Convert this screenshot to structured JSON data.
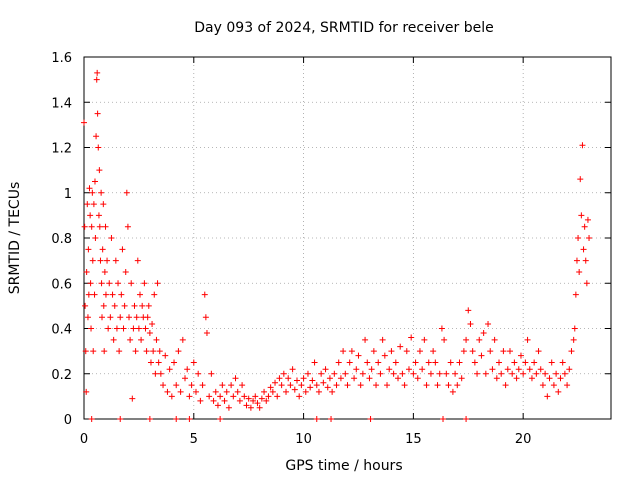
{
  "chart_data": {
    "type": "scatter",
    "title": "Day 093 of 2024, SRMTID for receiver bele",
    "xlabel": "GPS time / hours",
    "ylabel": "SRMTID / TECUs",
    "xlim": [
      0,
      24
    ],
    "ylim": [
      0,
      1.6
    ],
    "xticks": [
      0,
      5,
      10,
      15,
      20
    ],
    "xtick_labels": [
      "0",
      "5",
      "10",
      "15",
      "20"
    ],
    "yticks": [
      0,
      0.2,
      0.4,
      0.6,
      0.8,
      1,
      1.2,
      1.4,
      1.6
    ],
    "ytick_labels": [
      "0",
      "0.2",
      "0.4",
      "0.6",
      "0.8",
      "1",
      "1.2",
      "1.4",
      "1.6"
    ],
    "grid": true,
    "marker": "+",
    "color": "#ff0000",
    "series": [
      {
        "name": "SRMTID",
        "points": [
          [
            0.0,
            1.31
          ],
          [
            0.03,
            0.85
          ],
          [
            0.05,
            0.5
          ],
          [
            0.08,
            0.3
          ],
          [
            0.1,
            0.12
          ],
          [
            0.12,
            0.65
          ],
          [
            0.15,
            0.95
          ],
          [
            0.18,
            0.45
          ],
          [
            0.2,
            0.75
          ],
          [
            0.22,
            0.55
          ],
          [
            0.25,
            1.02
          ],
          [
            0.28,
            0.9
          ],
          [
            0.3,
            0.6
          ],
          [
            0.32,
            0.4
          ],
          [
            0.35,
            0.85
          ],
          [
            0.38,
            1.0
          ],
          [
            0.4,
            0.7
          ],
          [
            0.42,
            0.3
          ],
          [
            0.45,
            0.95
          ],
          [
            0.48,
            0.55
          ],
          [
            0.5,
            1.05
          ],
          [
            0.52,
            0.8
          ],
          [
            0.55,
            1.25
          ],
          [
            0.58,
            1.5
          ],
          [
            0.6,
            1.53
          ],
          [
            0.62,
            1.35
          ],
          [
            0.65,
            1.2
          ],
          [
            0.68,
            0.9
          ],
          [
            0.7,
            1.1
          ],
          [
            0.72,
            0.85
          ],
          [
            0.75,
            0.7
          ],
          [
            0.78,
            1.0
          ],
          [
            0.8,
            0.6
          ],
          [
            0.82,
            0.45
          ],
          [
            0.85,
            0.75
          ],
          [
            0.88,
            0.95
          ],
          [
            0.9,
            0.5
          ],
          [
            0.92,
            0.3
          ],
          [
            0.95,
            0.65
          ],
          [
            0.98,
            0.85
          ],
          [
            1.0,
            0.55
          ],
          [
            1.05,
            0.7
          ],
          [
            1.1,
            0.4
          ],
          [
            1.15,
            0.6
          ],
          [
            1.2,
            0.45
          ],
          [
            1.25,
            0.8
          ],
          [
            1.3,
            0.55
          ],
          [
            1.35,
            0.35
          ],
          [
            1.4,
            0.5
          ],
          [
            1.45,
            0.7
          ],
          [
            1.5,
            0.4
          ],
          [
            1.55,
            0.6
          ],
          [
            1.6,
            0.3
          ],
          [
            1.65,
            0.45
          ],
          [
            1.7,
            0.55
          ],
          [
            1.75,
            0.75
          ],
          [
            1.8,
            0.4
          ],
          [
            1.85,
            0.5
          ],
          [
            1.9,
            0.65
          ],
          [
            1.95,
            1.0
          ],
          [
            2.0,
            0.85
          ],
          [
            2.05,
            0.45
          ],
          [
            2.1,
            0.35
          ],
          [
            2.15,
            0.6
          ],
          [
            2.2,
            0.09
          ],
          [
            2.25,
            0.4
          ],
          [
            2.3,
            0.5
          ],
          [
            2.35,
            0.3
          ],
          [
            2.4,
            0.45
          ],
          [
            2.45,
            0.7
          ],
          [
            2.5,
            0.4
          ],
          [
            2.55,
            0.55
          ],
          [
            2.6,
            0.35
          ],
          [
            2.65,
            0.5
          ],
          [
            2.7,
            0.45
          ],
          [
            2.75,
            0.6
          ],
          [
            2.8,
            0.4
          ],
          [
            2.85,
            0.3
          ],
          [
            2.9,
            0.45
          ],
          [
            2.95,
            0.5
          ],
          [
            3.0,
            0.38
          ],
          [
            3.05,
            0.25
          ],
          [
            3.1,
            0.42
          ],
          [
            3.15,
            0.3
          ],
          [
            3.2,
            0.55
          ],
          [
            3.25,
            0.2
          ],
          [
            3.3,
            0.35
          ],
          [
            3.35,
            0.6
          ],
          [
            3.4,
            0.25
          ],
          [
            3.45,
            0.3
          ],
          [
            3.5,
            0.2
          ],
          [
            3.6,
            0.15
          ],
          [
            3.7,
            0.28
          ],
          [
            3.8,
            0.12
          ],
          [
            3.9,
            0.22
          ],
          [
            4.0,
            0.1
          ],
          [
            4.1,
            0.25
          ],
          [
            4.2,
            0.15
          ],
          [
            4.3,
            0.3
          ],
          [
            4.4,
            0.12
          ],
          [
            4.5,
            0.35
          ],
          [
            4.6,
            0.18
          ],
          [
            4.7,
            0.22
          ],
          [
            4.8,
            0.1
          ],
          [
            4.9,
            0.15
          ],
          [
            5.0,
            0.25
          ],
          [
            5.1,
            0.12
          ],
          [
            5.2,
            0.2
          ],
          [
            5.3,
            0.08
          ],
          [
            5.4,
            0.15
          ],
          [
            5.5,
            0.55
          ],
          [
            5.55,
            0.45
          ],
          [
            5.6,
            0.38
          ],
          [
            5.7,
            0.1
          ],
          [
            5.8,
            0.2
          ],
          [
            5.9,
            0.08
          ],
          [
            6.0,
            0.12
          ],
          [
            6.1,
            0.06
          ],
          [
            6.2,
            0.1
          ],
          [
            6.3,
            0.15
          ],
          [
            6.4,
            0.08
          ],
          [
            6.5,
            0.12
          ],
          [
            6.6,
            0.05
          ],
          [
            6.7,
            0.15
          ],
          [
            6.8,
            0.1
          ],
          [
            6.9,
            0.18
          ],
          [
            7.0,
            0.12
          ],
          [
            7.1,
            0.08
          ],
          [
            7.2,
            0.15
          ],
          [
            7.3,
            0.1
          ],
          [
            7.4,
            0.06
          ],
          [
            7.5,
            0.09
          ],
          [
            7.6,
            0.05
          ],
          [
            7.7,
            0.08
          ],
          [
            7.8,
            0.1
          ],
          [
            7.9,
            0.07
          ],
          [
            8.0,
            0.05
          ],
          [
            8.1,
            0.09
          ],
          [
            8.2,
            0.12
          ],
          [
            8.3,
            0.08
          ],
          [
            8.4,
            0.1
          ],
          [
            8.5,
            0.14
          ],
          [
            8.6,
            0.12
          ],
          [
            8.7,
            0.16
          ],
          [
            8.8,
            0.1
          ],
          [
            8.9,
            0.18
          ],
          [
            9.0,
            0.15
          ],
          [
            9.1,
            0.2
          ],
          [
            9.2,
            0.12
          ],
          [
            9.3,
            0.18
          ],
          [
            9.4,
            0.15
          ],
          [
            9.5,
            0.22
          ],
          [
            9.6,
            0.13
          ],
          [
            9.7,
            0.17
          ],
          [
            9.8,
            0.1
          ],
          [
            9.9,
            0.15
          ],
          [
            10.0,
            0.18
          ],
          [
            10.1,
            0.12
          ],
          [
            10.2,
            0.2
          ],
          [
            10.3,
            0.14
          ],
          [
            10.4,
            0.17
          ],
          [
            10.5,
            0.25
          ],
          [
            10.6,
            0.15
          ],
          [
            10.7,
            0.12
          ],
          [
            10.8,
            0.2
          ],
          [
            10.9,
            0.16
          ],
          [
            11.0,
            0.22
          ],
          [
            11.1,
            0.14
          ],
          [
            11.2,
            0.18
          ],
          [
            11.3,
            0.12
          ],
          [
            11.4,
            0.2
          ],
          [
            11.5,
            0.15
          ],
          [
            11.6,
            0.25
          ],
          [
            11.7,
            0.18
          ],
          [
            11.8,
            0.3
          ],
          [
            11.9,
            0.2
          ],
          [
            12.0,
            0.15
          ],
          [
            12.1,
            0.25
          ],
          [
            12.2,
            0.3
          ],
          [
            12.3,
            0.18
          ],
          [
            12.4,
            0.22
          ],
          [
            12.5,
            0.28
          ],
          [
            12.6,
            0.15
          ],
          [
            12.7,
            0.2
          ],
          [
            12.8,
            0.35
          ],
          [
            12.9,
            0.25
          ],
          [
            13.0,
            0.18
          ],
          [
            13.1,
            0.22
          ],
          [
            13.2,
            0.3
          ],
          [
            13.3,
            0.15
          ],
          [
            13.4,
            0.25
          ],
          [
            13.5,
            0.2
          ],
          [
            13.6,
            0.35
          ],
          [
            13.7,
            0.28
          ],
          [
            13.8,
            0.15
          ],
          [
            13.9,
            0.22
          ],
          [
            14.0,
            0.3
          ],
          [
            14.1,
            0.2
          ],
          [
            14.2,
            0.25
          ],
          [
            14.3,
            0.18
          ],
          [
            14.4,
            0.32
          ],
          [
            14.5,
            0.2
          ],
          [
            14.6,
            0.15
          ],
          [
            14.7,
            0.3
          ],
          [
            14.8,
            0.22
          ],
          [
            14.9,
            0.36
          ],
          [
            15.0,
            0.2
          ],
          [
            15.1,
            0.25
          ],
          [
            15.2,
            0.18
          ],
          [
            15.3,
            0.3
          ],
          [
            15.4,
            0.22
          ],
          [
            15.5,
            0.35
          ],
          [
            15.6,
            0.15
          ],
          [
            15.7,
            0.25
          ],
          [
            15.8,
            0.2
          ],
          [
            15.9,
            0.3
          ],
          [
            16.0,
            0.25
          ],
          [
            16.1,
            0.15
          ],
          [
            16.2,
            0.2
          ],
          [
            16.3,
            0.4
          ],
          [
            16.4,
            0.35
          ],
          [
            16.5,
            0.2
          ],
          [
            16.6,
            0.15
          ],
          [
            16.7,
            0.25
          ],
          [
            16.8,
            0.12
          ],
          [
            16.9,
            0.2
          ],
          [
            17.0,
            0.15
          ],
          [
            17.1,
            0.25
          ],
          [
            17.2,
            0.18
          ],
          [
            17.3,
            0.3
          ],
          [
            17.4,
            0.35
          ],
          [
            17.5,
            0.48
          ],
          [
            17.6,
            0.42
          ],
          [
            17.7,
            0.3
          ],
          [
            17.8,
            0.25
          ],
          [
            17.9,
            0.2
          ],
          [
            18.0,
            0.35
          ],
          [
            18.1,
            0.28
          ],
          [
            18.2,
            0.38
          ],
          [
            18.3,
            0.2
          ],
          [
            18.4,
            0.42
          ],
          [
            18.5,
            0.3
          ],
          [
            18.6,
            0.22
          ],
          [
            18.7,
            0.35
          ],
          [
            18.8,
            0.18
          ],
          [
            18.9,
            0.25
          ],
          [
            19.0,
            0.2
          ],
          [
            19.1,
            0.3
          ],
          [
            19.2,
            0.15
          ],
          [
            19.3,
            0.22
          ],
          [
            19.4,
            0.3
          ],
          [
            19.5,
            0.2
          ],
          [
            19.6,
            0.25
          ],
          [
            19.7,
            0.18
          ],
          [
            19.8,
            0.22
          ],
          [
            19.9,
            0.28
          ],
          [
            20.0,
            0.2
          ],
          [
            20.1,
            0.25
          ],
          [
            20.2,
            0.35
          ],
          [
            20.3,
            0.22
          ],
          [
            20.4,
            0.18
          ],
          [
            20.5,
            0.25
          ],
          [
            20.6,
            0.2
          ],
          [
            20.7,
            0.3
          ],
          [
            20.8,
            0.22
          ],
          [
            20.9,
            0.15
          ],
          [
            21.0,
            0.2
          ],
          [
            21.1,
            0.1
          ],
          [
            21.2,
            0.18
          ],
          [
            21.3,
            0.25
          ],
          [
            21.4,
            0.15
          ],
          [
            21.5,
            0.2
          ],
          [
            21.6,
            0.12
          ],
          [
            21.7,
            0.18
          ],
          [
            21.8,
            0.25
          ],
          [
            21.9,
            0.2
          ],
          [
            22.0,
            0.15
          ],
          [
            22.1,
            0.22
          ],
          [
            22.2,
            0.3
          ],
          [
            22.3,
            0.35
          ],
          [
            22.35,
            0.4
          ],
          [
            22.4,
            0.55
          ],
          [
            22.45,
            0.7
          ],
          [
            22.5,
            0.8
          ],
          [
            22.55,
            0.65
          ],
          [
            22.6,
            1.06
          ],
          [
            22.65,
            0.9
          ],
          [
            22.7,
            1.21
          ],
          [
            22.75,
            0.75
          ],
          [
            22.8,
            0.85
          ],
          [
            22.85,
            0.7
          ],
          [
            22.9,
            0.6
          ],
          [
            22.95,
            0.88
          ],
          [
            23.0,
            0.8
          ],
          [
            0.35,
            0.0
          ],
          [
            1.65,
            0.0
          ],
          [
            3.0,
            0.0
          ],
          [
            4.2,
            0.0
          ],
          [
            4.8,
            0.0
          ],
          [
            6.2,
            0.0
          ],
          [
            10.6,
            0.0
          ],
          [
            11.25,
            0.0
          ],
          [
            13.05,
            0.0
          ],
          [
            16.35,
            0.0
          ],
          [
            17.4,
            0.0
          ]
        ]
      }
    ]
  }
}
